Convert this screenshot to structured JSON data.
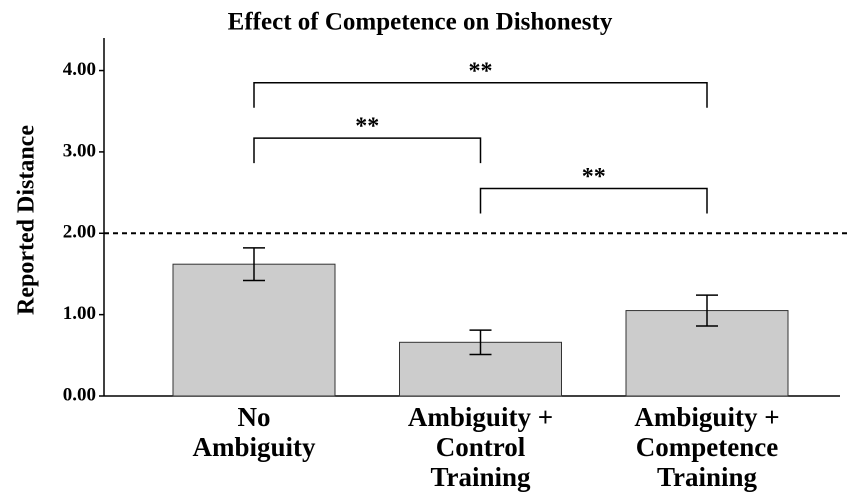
{
  "chart_data": {
    "type": "bar",
    "title": "Effect of Competence on Dishonesty",
    "ylabel": "Reported Distance",
    "categories": [
      "No\nAmbiguity",
      "Ambiguity +\nControl\nTraining",
      "Ambiguity +\nCompetence\nTraining"
    ],
    "values": [
      1.62,
      0.66,
      1.05
    ],
    "errors": [
      0.2,
      0.15,
      0.19
    ],
    "color": "#cccccc",
    "ylim": [
      0,
      4.4
    ],
    "yticks": [
      {
        "value": 0,
        "label": "0.00"
      },
      {
        "value": 1,
        "label": "1.00"
      },
      {
        "value": 2,
        "label": "2.00"
      },
      {
        "value": 3,
        "label": "3.00"
      },
      {
        "value": 4,
        "label": "4.00"
      }
    ],
    "reference_line": 2,
    "brackets": [
      {
        "from": 0,
        "to": 2,
        "y": 3.85,
        "label": "**"
      },
      {
        "from": 0,
        "to": 1,
        "y": 3.17,
        "label": "**"
      },
      {
        "from": 1,
        "to": 2,
        "y": 2.55,
        "label": "**"
      }
    ]
  }
}
